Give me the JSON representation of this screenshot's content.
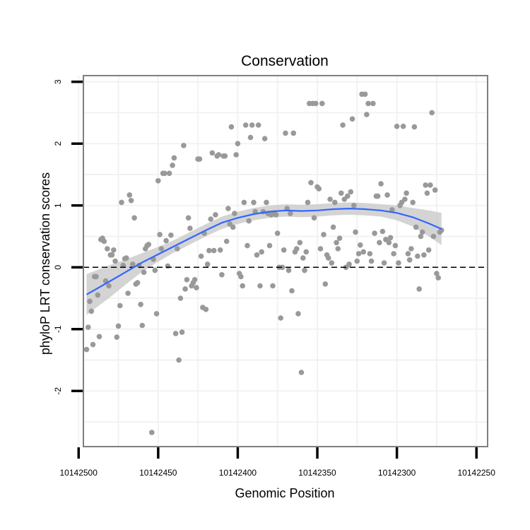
{
  "chart_data": {
    "type": "scatter",
    "title": "Conservation",
    "xlabel": "Genomic Position",
    "ylabel": "phyloP LRT conservation scores",
    "x_reversed": true,
    "xlim": [
      10142497,
      10142243
    ],
    "ylim": [
      -2.9,
      3.1
    ],
    "x_ticks": [
      10142500,
      10142450,
      10142400,
      10142350,
      10142300,
      10142250
    ],
    "x_tick_labels": [
      "10142500",
      "10142450",
      "10142400",
      "10142350",
      "10142300",
      "10142250"
    ],
    "y_ticks": [
      -2,
      -1,
      0,
      1,
      2,
      3
    ],
    "y_tick_labels": [
      "-2",
      "-1",
      "0",
      "1",
      "2",
      "3"
    ],
    "reference_line": {
      "y": 0,
      "style": "dashed",
      "color": "#000000"
    },
    "grid": true,
    "colors": {
      "points": "#999999",
      "smooth_line": "#3366ff",
      "ribbon": "#cccccc",
      "panel_border": "#7f7f7f",
      "grid": "#f2f2f2"
    },
    "points": [
      [
        10142495,
        -1.33
      ],
      [
        10142494,
        -0.97
      ],
      [
        10142493,
        -0.55
      ],
      [
        10142492,
        -0.71
      ],
      [
        10142491,
        -1.25
      ],
      [
        10142490,
        -0.15
      ],
      [
        10142489,
        -0.15
      ],
      [
        10142488,
        -0.45
      ],
      [
        10142487,
        -1.12
      ],
      [
        10142486,
        0.45
      ],
      [
        10142485,
        0.47
      ],
      [
        10142484,
        0.42
      ],
      [
        10142483,
        -0.22
      ],
      [
        10142482,
        0.3
      ],
      [
        10142481,
        -0.3
      ],
      [
        10142480,
        0.2
      ],
      [
        10142479,
        0.2
      ],
      [
        10142478,
        0.28
      ],
      [
        10142477,
        0.1
      ],
      [
        10142476,
        -1.13
      ],
      [
        10142475,
        -0.95
      ],
      [
        10142474,
        -0.62
      ],
      [
        10142473,
        1.05
      ],
      [
        10142472,
        0.03
      ],
      [
        10142471,
        0.14
      ],
      [
        10142470,
        0.15
      ],
      [
        10142469,
        -0.42
      ],
      [
        10142468,
        1.17
      ],
      [
        10142467,
        1.08
      ],
      [
        10142466,
        0.05
      ],
      [
        10142465,
        0.8
      ],
      [
        10142464,
        -0.27
      ],
      [
        10142463,
        -0.25
      ],
      [
        10142462,
        0.03
      ],
      [
        10142461,
        -0.6
      ],
      [
        10142460,
        -0.94
      ],
      [
        10142459,
        -0.08
      ],
      [
        10142458,
        0.3
      ],
      [
        10142457,
        0.35
      ],
      [
        10142456,
        0.37
      ],
      [
        10142454,
        -2.67
      ],
      [
        10142453,
        0.13
      ],
      [
        10142452,
        -0.05
      ],
      [
        10142451,
        -0.75
      ],
      [
        10142450,
        1.4
      ],
      [
        10142449,
        0.53
      ],
      [
        10142448,
        0.3
      ],
      [
        10142447,
        1.52
      ],
      [
        10142446,
        1.52
      ],
      [
        10142445,
        0.43
      ],
      [
        10142444,
        0.02
      ],
      [
        10142443,
        1.52
      ],
      [
        10142442,
        0.52
      ],
      [
        10142441,
        1.65
      ],
      [
        10142440,
        1.77
      ],
      [
        10142439,
        -1.07
      ],
      [
        10142438,
        0.3
      ],
      [
        10142437,
        -1.5
      ],
      [
        10142436,
        -0.5
      ],
      [
        10142435,
        -1.05
      ],
      [
        10142434,
        1.97
      ],
      [
        10142433,
        -0.35
      ],
      [
        10142432,
        -0.2
      ],
      [
        10142431,
        0.8
      ],
      [
        10142430,
        0.63
      ],
      [
        10142429,
        -0.3
      ],
      [
        10142428,
        -0.25
      ],
      [
        10142427,
        -0.2
      ],
      [
        10142426,
        -0.33
      ],
      [
        10142425,
        1.75
      ],
      [
        10142424,
        1.75
      ],
      [
        10142423,
        0.18
      ],
      [
        10142422,
        -0.65
      ],
      [
        10142421,
        0.55
      ],
      [
        10142420,
        -0.68
      ],
      [
        10142419,
        0.05
      ],
      [
        10142418,
        0.27
      ],
      [
        10142417,
        0.78
      ],
      [
        10142416,
        1.85
      ],
      [
        10142415,
        0.27
      ],
      [
        10142414,
        0.85
      ],
      [
        10142413,
        1.8
      ],
      [
        10142412,
        1.82
      ],
      [
        10142411,
        0.28
      ],
      [
        10142410,
        -0.12
      ],
      [
        10142409,
        1.8
      ],
      [
        10142408,
        1.8
      ],
      [
        10142407,
        0.42
      ],
      [
        10142406,
        0.95
      ],
      [
        10142405,
        0.7
      ],
      [
        10142404,
        2.27
      ],
      [
        10142403,
        0.65
      ],
      [
        10142402,
        0.87
      ],
      [
        10142401,
        1.82
      ],
      [
        10142400,
        2.0
      ],
      [
        10142399,
        -0.1
      ],
      [
        10142398,
        -0.15
      ],
      [
        10142397,
        -0.3
      ],
      [
        10142396,
        1.05
      ],
      [
        10142395,
        2.3
      ],
      [
        10142394,
        0.35
      ],
      [
        10142393,
        0.75
      ],
      [
        10142392,
        2.1
      ],
      [
        10142391,
        2.3
      ],
      [
        10142390,
        1.05
      ],
      [
        10142389,
        0.9
      ],
      [
        10142388,
        0.2
      ],
      [
        10142387,
        2.3
      ],
      [
        10142386,
        -0.3
      ],
      [
        10142385,
        0.25
      ],
      [
        10142384,
        0.9
      ],
      [
        10142383,
        2.08
      ],
      [
        10142382,
        1.05
      ],
      [
        10142381,
        0.87
      ],
      [
        10142380,
        0.35
      ],
      [
        10142379,
        0.85
      ],
      [
        10142378,
        -0.3
      ],
      [
        10142377,
        0.88
      ],
      [
        10142376,
        0.85
      ],
      [
        10142375,
        0.55
      ],
      [
        10142374,
        0.0
      ],
      [
        10142373,
        -0.82
      ],
      [
        10142372,
        0.0
      ],
      [
        10142371,
        0.28
      ],
      [
        10142370,
        2.17
      ],
      [
        10142369,
        0.95
      ],
      [
        10142368,
        -0.05
      ],
      [
        10142367,
        0.87
      ],
      [
        10142366,
        -0.38
      ],
      [
        10142365,
        2.17
      ],
      [
        10142364,
        0.25
      ],
      [
        10142363,
        0.3
      ],
      [
        10142362,
        -0.75
      ],
      [
        10142361,
        0.4
      ],
      [
        10142360,
        -1.7
      ],
      [
        10142359,
        0.15
      ],
      [
        10142358,
        -0.05
      ],
      [
        10142357,
        0.25
      ],
      [
        10142356,
        1.05
      ],
      [
        10142355,
        2.65
      ],
      [
        10142354,
        1.37
      ],
      [
        10142353,
        2.65
      ],
      [
        10142352,
        0.8
      ],
      [
        10142351,
        2.65
      ],
      [
        10142350,
        1.3
      ],
      [
        10142349,
        1.27
      ],
      [
        10142348,
        0.3
      ],
      [
        10142347,
        2.65
      ],
      [
        10142346,
        0.53
      ],
      [
        10142345,
        -0.27
      ],
      [
        10142344,
        0.2
      ],
      [
        10142343,
        0.15
      ],
      [
        10142342,
        1.1
      ],
      [
        10142341,
        0.07
      ],
      [
        10142340,
        0.65
      ],
      [
        10142339,
        1.05
      ],
      [
        10142338,
        0.4
      ],
      [
        10142337,
        0.3
      ],
      [
        10142336,
        0.47
      ],
      [
        10142335,
        1.2
      ],
      [
        10142334,
        2.3
      ],
      [
        10142333,
        1.1
      ],
      [
        10142332,
        0.0
      ],
      [
        10142331,
        1.15
      ],
      [
        10142330,
        0.05
      ],
      [
        10142329,
        1.22
      ],
      [
        10142328,
        2.4
      ],
      [
        10142327,
        1.0
      ],
      [
        10142326,
        0.57
      ],
      [
        10142325,
        0.1
      ],
      [
        10142324,
        0.22
      ],
      [
        10142323,
        0.36
      ],
      [
        10142322,
        2.8
      ],
      [
        10142321,
        0.25
      ],
      [
        10142320,
        2.8
      ],
      [
        10142319,
        2.47
      ],
      [
        10142318,
        2.65
      ],
      [
        10142317,
        0.22
      ],
      [
        10142316,
        0.1
      ],
      [
        10142315,
        2.65
      ],
      [
        10142314,
        0.55
      ],
      [
        10142313,
        1.15
      ],
      [
        10142312,
        1.15
      ],
      [
        10142311,
        0.4
      ],
      [
        10142310,
        1.35
      ],
      [
        10142309,
        0.58
      ],
      [
        10142308,
        0.07
      ],
      [
        10142307,
        0.45
      ],
      [
        10142306,
        1.17
      ],
      [
        10142305,
        0.4
      ],
      [
        10142304,
        0.48
      ],
      [
        10142303,
        0.93
      ],
      [
        10142302,
        0.22
      ],
      [
        10142301,
        0.35
      ],
      [
        10142300,
        2.28
      ],
      [
        10142299,
        0.07
      ],
      [
        10142298,
        1.0
      ],
      [
        10142297,
        1.05
      ],
      [
        10142296,
        2.28
      ],
      [
        10142295,
        1.1
      ],
      [
        10142294,
        1.2
      ],
      [
        10142293,
        0.22
      ],
      [
        10142292,
        0.12
      ],
      [
        10142291,
        0.3
      ],
      [
        10142290,
        1.05
      ],
      [
        10142289,
        2.27
      ],
      [
        10142288,
        0.65
      ],
      [
        10142287,
        0.18
      ],
      [
        10142286,
        -0.35
      ],
      [
        10142285,
        0.5
      ],
      [
        10142284,
        0.57
      ],
      [
        10142283,
        0.2
      ],
      [
        10142282,
        1.33
      ],
      [
        10142281,
        1.2
      ],
      [
        10142280,
        0.28
      ],
      [
        10142279,
        1.33
      ],
      [
        10142278,
        2.5
      ],
      [
        10142277,
        0.5
      ],
      [
        10142276,
        1.25
      ],
      [
        10142275,
        -0.1
      ],
      [
        10142274,
        -0.17
      ],
      [
        10142273,
        0.57
      ],
      [
        10142272,
        0.6
      ]
    ],
    "smooth_curve": {
      "x": [
        10142495,
        10142480,
        10142470,
        10142460,
        10142450,
        10142440,
        10142430,
        10142420,
        10142410,
        10142400,
        10142390,
        10142380,
        10142370,
        10142360,
        10142350,
        10142340,
        10142330,
        10142320,
        10142310,
        10142300,
        10142290,
        10142280,
        10142272
      ],
      "y": [
        -0.44,
        -0.22,
        -0.07,
        0.08,
        0.21,
        0.34,
        0.47,
        0.6,
        0.72,
        0.8,
        0.86,
        0.9,
        0.92,
        0.91,
        0.92,
        0.94,
        0.95,
        0.94,
        0.92,
        0.88,
        0.81,
        0.71,
        0.62
      ],
      "lower": [
        -0.77,
        -0.48,
        -0.27,
        -0.07,
        0.09,
        0.24,
        0.37,
        0.5,
        0.62,
        0.7,
        0.76,
        0.8,
        0.82,
        0.81,
        0.82,
        0.84,
        0.85,
        0.84,
        0.82,
        0.76,
        0.66,
        0.5,
        0.36
      ],
      "upper": [
        -0.11,
        0.04,
        0.13,
        0.23,
        0.33,
        0.44,
        0.57,
        0.7,
        0.82,
        0.9,
        0.96,
        1.0,
        1.02,
        1.01,
        1.02,
        1.04,
        1.05,
        1.04,
        1.02,
        1.0,
        0.96,
        0.92,
        0.88
      ]
    }
  }
}
